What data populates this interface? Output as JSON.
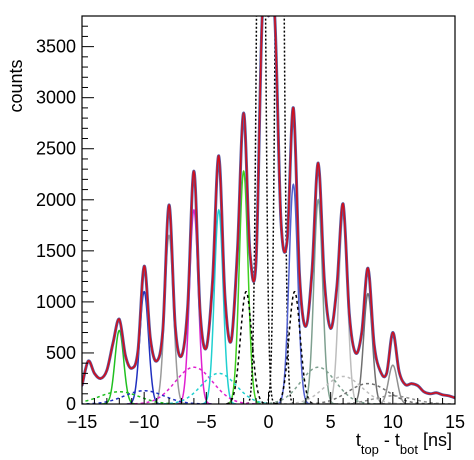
{
  "chart_data": {
    "type": "line",
    "title": "",
    "ylabel": "counts",
    "xlabel": {
      "pre": "t",
      "sub1": "top",
      "mid": " - t",
      "sub2": "bot",
      "post": " [ns]"
    },
    "xlim": [
      -15,
      15
    ],
    "ylim": [
      0,
      3800
    ],
    "x_ticks": [
      -15,
      -10,
      -5,
      0,
      5,
      10,
      15
    ],
    "y_ticks": [
      0,
      500,
      1000,
      1500,
      2000,
      2500,
      3000,
      3500
    ],
    "grid": false,
    "data_hist": {
      "color": "#5a5aa0",
      "x": [
        -15.0,
        -14.5,
        -14.0,
        -13.5,
        -13.0,
        -12.5,
        -12.0,
        -11.5,
        -11.0,
        -10.5,
        -10.0,
        -9.5,
        -9.0,
        -8.5,
        -8.0,
        -7.5,
        -7.0,
        -6.5,
        -6.0,
        -5.5,
        -5.0,
        -4.5,
        -4.0,
        -3.5,
        -3.0,
        -2.5,
        -2.0,
        -1.5,
        -1.0,
        -0.5,
        0.0,
        0.5,
        1.0,
        1.5,
        2.0,
        2.5,
        3.0,
        3.5,
        4.0,
        4.5,
        5.0,
        5.5,
        6.0,
        6.5,
        7.0,
        7.5,
        8.0,
        8.5,
        9.0,
        9.5,
        10.0,
        10.5,
        11.0,
        11.5,
        12.0,
        12.5,
        13.0,
        13.5,
        14.0,
        14.5,
        15.0
      ],
      "y": [
        180,
        420,
        300,
        250,
        330,
        600,
        830,
        470,
        350,
        520,
        1350,
        640,
        420,
        720,
        1950,
        760,
        470,
        950,
        2280,
        900,
        550,
        1200,
        2430,
        1050,
        620,
        1500,
        2850,
        1500,
        1400,
        3800,
        3800,
        3800,
        1800,
        1600,
        2900,
        1250,
        760,
        1300,
        2360,
        1200,
        740,
        1150,
        1960,
        880,
        500,
        700,
        1330,
        580,
        320,
        300,
        700,
        320,
        190,
        200,
        180,
        120,
        100,
        110,
        90,
        80,
        60
      ]
    },
    "fit_total": {
      "color": "#d0101e"
    },
    "components": [
      {
        "color": "#20c020",
        "center": -12,
        "amp": 720,
        "sigma": 0.35
      },
      {
        "color": "#2030c0",
        "center": -10,
        "amp": 1100,
        "sigma": 0.35
      },
      {
        "color": "#9a9a9a",
        "center": -8,
        "amp": 1650,
        "sigma": 0.35
      },
      {
        "color": "#e020d0",
        "center": -6,
        "amp": 1900,
        "sigma": 0.35
      },
      {
        "color": "#20d0d0",
        "center": -4,
        "amp": 1900,
        "sigma": 0.35
      },
      {
        "color": "#40d020",
        "center": -2,
        "amp": 2280,
        "sigma": 0.35
      },
      {
        "color": "#000000",
        "center": -0.6,
        "amp": 9000,
        "sigma": 0.28
      },
      {
        "color": "#000000",
        "center": 0.9,
        "amp": 9000,
        "sigma": 0.28
      },
      {
        "color": "#5060d0",
        "center": 2,
        "amp": 2150,
        "sigma": 0.35
      },
      {
        "color": "#7fa090",
        "center": 4,
        "amp": 2000,
        "sigma": 0.35
      },
      {
        "color": "#bdbdbd",
        "center": 6,
        "amp": 1850,
        "sigma": 0.35
      },
      {
        "color": "#707070",
        "center": 8,
        "amp": 1080,
        "sigma": 0.35
      },
      {
        "color": "#909090",
        "center": 10,
        "amp": 380,
        "sigma": 0.35
      }
    ],
    "background_components": [
      {
        "color": "#20c020",
        "center": -12,
        "amp": 120,
        "sigma": 1.6
      },
      {
        "color": "#2030c0",
        "center": -10,
        "amp": 130,
        "sigma": 1.6
      },
      {
        "color": "#e020d0",
        "center": -6,
        "amp": 360,
        "sigma": 1.5
      },
      {
        "color": "#20d0d0",
        "center": -4,
        "amp": 300,
        "sigma": 1.4
      },
      {
        "color": "#000000",
        "center": -1.8,
        "amp": 1100,
        "sigma": 0.45
      },
      {
        "color": "#000000",
        "center": 2.1,
        "amp": 1100,
        "sigma": 0.45
      },
      {
        "color": "#7fa090",
        "center": 4,
        "amp": 360,
        "sigma": 1.4
      },
      {
        "color": "#bdbdbd",
        "center": 6,
        "amp": 270,
        "sigma": 1.5
      },
      {
        "color": "#707070",
        "center": 8,
        "amp": 200,
        "sigma": 1.6
      },
      {
        "color": "#909090",
        "center": 10,
        "amp": 80,
        "sigma": 1.6
      }
    ]
  }
}
